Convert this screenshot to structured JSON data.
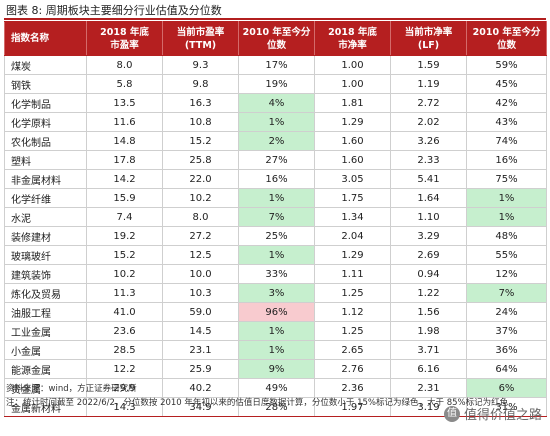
{
  "caption": "图表 8: 周期板块主要细分行业估值及分位数",
  "columns": [
    {
      "line1": "指数名称",
      "line2": ""
    },
    {
      "line1": "2018 年底",
      "line2": "市盈率"
    },
    {
      "line1": "当前市盈率",
      "line2": "(TTM)"
    },
    {
      "line1": "2010 年至今分",
      "line2": "位数"
    },
    {
      "line1": "2018 年底",
      "line2": "市净率"
    },
    {
      "line1": "当前市净率",
      "line2": "(LF)"
    },
    {
      "line1": "2010 年至今分",
      "line2": "位数"
    }
  ],
  "rows": [
    {
      "name": "煤炭",
      "pe2018": "8.0",
      "pe_now": "9.3",
      "pe_pct": "17%",
      "pe_hl": "",
      "pb2018": "1.00",
      "pb_now": "1.59",
      "pb_pct": "59%",
      "pb_hl": ""
    },
    {
      "name": "钢铁",
      "pe2018": "5.8",
      "pe_now": "9.8",
      "pe_pct": "19%",
      "pe_hl": "",
      "pb2018": "1.00",
      "pb_now": "1.19",
      "pb_pct": "45%",
      "pb_hl": ""
    },
    {
      "name": "化学制品",
      "pe2018": "13.5",
      "pe_now": "16.3",
      "pe_pct": "4%",
      "pe_hl": "green",
      "pb2018": "1.81",
      "pb_now": "2.72",
      "pb_pct": "42%",
      "pb_hl": ""
    },
    {
      "name": "化学原料",
      "pe2018": "11.6",
      "pe_now": "10.8",
      "pe_pct": "1%",
      "pe_hl": "green",
      "pb2018": "1.29",
      "pb_now": "2.02",
      "pb_pct": "43%",
      "pb_hl": ""
    },
    {
      "name": "农化制品",
      "pe2018": "14.8",
      "pe_now": "15.2",
      "pe_pct": "2%",
      "pe_hl": "green",
      "pb2018": "1.60",
      "pb_now": "3.26",
      "pb_pct": "74%",
      "pb_hl": ""
    },
    {
      "name": "塑料",
      "pe2018": "17.8",
      "pe_now": "25.8",
      "pe_pct": "27%",
      "pe_hl": "",
      "pb2018": "1.60",
      "pb_now": "2.33",
      "pb_pct": "16%",
      "pb_hl": ""
    },
    {
      "name": "非金属材料",
      "pe2018": "14.2",
      "pe_now": "22.0",
      "pe_pct": "16%",
      "pe_hl": "",
      "pb2018": "3.05",
      "pb_now": "5.41",
      "pb_pct": "75%",
      "pb_hl": ""
    },
    {
      "name": "化学纤维",
      "pe2018": "15.9",
      "pe_now": "10.2",
      "pe_pct": "1%",
      "pe_hl": "green",
      "pb2018": "1.75",
      "pb_now": "1.64",
      "pb_pct": "1%",
      "pb_hl": "green"
    },
    {
      "name": "水泥",
      "pe2018": "7.4",
      "pe_now": "8.0",
      "pe_pct": "7%",
      "pe_hl": "green",
      "pb2018": "1.34",
      "pb_now": "1.10",
      "pb_pct": "1%",
      "pb_hl": "green"
    },
    {
      "name": "装修建材",
      "pe2018": "19.2",
      "pe_now": "27.2",
      "pe_pct": "25%",
      "pe_hl": "",
      "pb2018": "2.04",
      "pb_now": "3.29",
      "pb_pct": "48%",
      "pb_hl": ""
    },
    {
      "name": "玻璃玻纤",
      "pe2018": "15.2",
      "pe_now": "12.5",
      "pe_pct": "1%",
      "pe_hl": "green",
      "pb2018": "1.29",
      "pb_now": "2.69",
      "pb_pct": "55%",
      "pb_hl": ""
    },
    {
      "name": "建筑装饰",
      "pe2018": "10.2",
      "pe_now": "10.0",
      "pe_pct": "33%",
      "pe_hl": "",
      "pb2018": "1.11",
      "pb_now": "0.94",
      "pb_pct": "12%",
      "pb_hl": ""
    },
    {
      "name": "炼化及贸易",
      "pe2018": "11.3",
      "pe_now": "10.3",
      "pe_pct": "3%",
      "pe_hl": "green",
      "pb2018": "1.25",
      "pb_now": "1.22",
      "pb_pct": "7%",
      "pb_hl": "green"
    },
    {
      "name": "油服工程",
      "pe2018": "41.0",
      "pe_now": "59.0",
      "pe_pct": "96%",
      "pe_hl": "red",
      "pb2018": "1.12",
      "pb_now": "1.56",
      "pb_pct": "24%",
      "pb_hl": ""
    },
    {
      "name": "工业金属",
      "pe2018": "23.6",
      "pe_now": "14.5",
      "pe_pct": "1%",
      "pe_hl": "green",
      "pb2018": "1.25",
      "pb_now": "1.98",
      "pb_pct": "37%",
      "pb_hl": ""
    },
    {
      "name": "小金属",
      "pe2018": "28.5",
      "pe_now": "23.1",
      "pe_pct": "1%",
      "pe_hl": "green",
      "pb2018": "2.65",
      "pb_now": "3.71",
      "pb_pct": "36%",
      "pb_hl": ""
    },
    {
      "name": "能源金属",
      "pe2018": "12.2",
      "pe_now": "25.9",
      "pe_pct": "9%",
      "pe_hl": "green",
      "pb2018": "2.76",
      "pb_now": "6.16",
      "pb_pct": "64%",
      "pb_hl": ""
    },
    {
      "name": "贵金属",
      "pe2018": "29.9",
      "pe_now": "40.2",
      "pe_pct": "49%",
      "pe_hl": "",
      "pb2018": "2.36",
      "pb_now": "2.31",
      "pb_pct": "6%",
      "pb_hl": "green"
    },
    {
      "name": "金属新材料",
      "pe2018": "14.3",
      "pe_now": "34.9",
      "pe_pct": "28%",
      "pe_hl": "",
      "pb2018": "1.97",
      "pb_now": "3.19",
      "pb_pct": "31%",
      "pb_hl": ""
    }
  ],
  "source_note": "资料来源：wind，方正证券研究所",
  "footnote": "注：统计时间截至 2022/6/2，分位数按 2010 年年初以来的估值日度数据计算，分位数小于 15%标记为绿色，大于 85%标记为红色",
  "watermark": "值得价值之路",
  "colors": {
    "header_bg": "#b51f20",
    "highlight_green": "#c6efce",
    "highlight_red": "#f8cbcf"
  }
}
